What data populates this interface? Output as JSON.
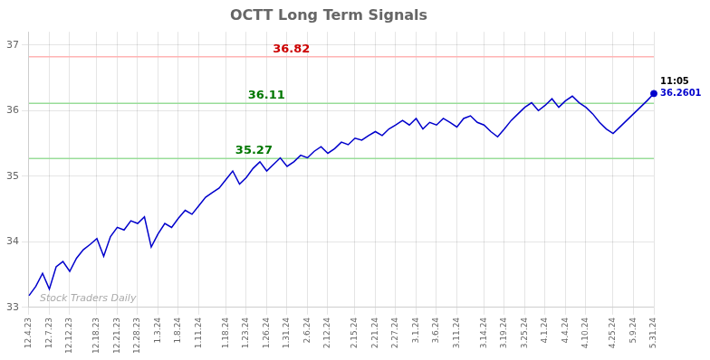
{
  "chart_data": {
    "type": "line",
    "title": "OCTT Long Term Signals",
    "color": "#0000cc",
    "categories": [
      "12.4.23",
      null,
      null,
      "12.7.23",
      null,
      null,
      "12.12.23",
      null,
      null,
      null,
      "12.18.23",
      null,
      null,
      "12.21.23",
      null,
      null,
      "12.28.23",
      null,
      null,
      "1.3.24",
      null,
      null,
      "1.8.24",
      null,
      null,
      "1.11.24",
      null,
      null,
      null,
      "1.18.24",
      null,
      null,
      "1.23.24",
      null,
      null,
      "1.26.24",
      null,
      null,
      "1.31.24",
      null,
      null,
      "2.6.24",
      null,
      null,
      "2.12.24",
      null,
      null,
      null,
      "2.15.24",
      null,
      null,
      "2.21.24",
      null,
      null,
      "2.27.24",
      null,
      null,
      "3.1.24",
      null,
      null,
      "3.6.24",
      null,
      null,
      "3.11.24",
      null,
      null,
      null,
      "3.14.24",
      null,
      null,
      "3.19.24",
      null,
      null,
      "3.25.24",
      null,
      null,
      "4.1.24",
      null,
      null,
      "4.4.24",
      null,
      null,
      "4.10.24",
      null,
      null,
      null,
      "4.25.24",
      null,
      null,
      "5.9.24",
      null,
      null,
      "5.31.24"
    ],
    "values": [
      33.18,
      33.32,
      33.52,
      33.28,
      33.62,
      33.7,
      33.55,
      33.75,
      33.88,
      33.96,
      34.05,
      33.78,
      34.08,
      34.22,
      34.18,
      34.32,
      34.28,
      34.38,
      33.92,
      34.12,
      34.28,
      34.22,
      34.36,
      34.48,
      34.42,
      34.55,
      34.68,
      34.75,
      34.82,
      34.95,
      35.08,
      34.88,
      34.98,
      35.12,
      35.22,
      35.08,
      35.18,
      35.28,
      35.15,
      35.22,
      35.32,
      35.28,
      35.38,
      35.45,
      35.35,
      35.42,
      35.52,
      35.48,
      35.58,
      35.55,
      35.62,
      35.68,
      35.62,
      35.72,
      35.78,
      35.85,
      35.78,
      35.88,
      35.72,
      35.82,
      35.78,
      35.88,
      35.82,
      35.75,
      35.88,
      35.92,
      35.82,
      35.78,
      35.68,
      35.6,
      35.72,
      35.85,
      35.95,
      36.05,
      36.12,
      36.0,
      36.08,
      36.18,
      36.05,
      36.15,
      36.22,
      36.12,
      36.05,
      35.95,
      35.82,
      35.72,
      35.65,
      35.75,
      35.85,
      35.95,
      36.05,
      36.15,
      36.26
    ],
    "last_point": {
      "value": 36.2601,
      "label": "36.2601",
      "time": "11:05",
      "color": "#0000cc"
    },
    "hlines": [
      {
        "value": 36.82,
        "color": "#ffb3b3",
        "label": "36.82",
        "label_color": "#cc0000"
      },
      {
        "value": 36.11,
        "color": "#99dd99",
        "label": "36.11",
        "label_color": "#007700"
      },
      {
        "value": 35.27,
        "color": "#99dd99",
        "label": "35.27",
        "label_color": "#007700"
      }
    ],
    "annotations": [
      {
        "text": "Stock Traders Daily",
        "color": "#aaaaaa"
      }
    ],
    "ylim": [
      33.0,
      37.2
    ],
    "yticks": [
      33,
      34,
      35,
      36,
      37
    ],
    "grid": true
  }
}
